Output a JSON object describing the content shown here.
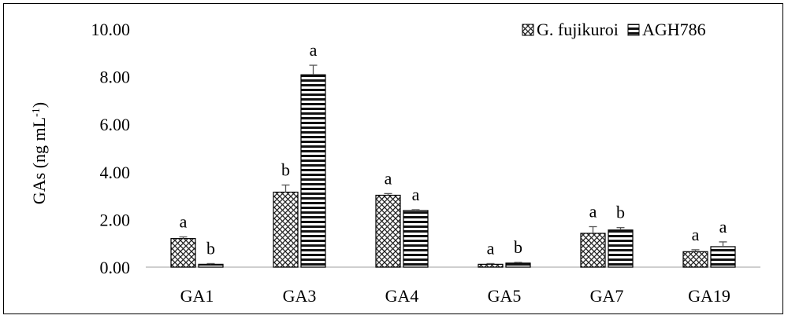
{
  "chart_data": {
    "type": "bar",
    "ylabel": "GAs (ng mL-1)",
    "ylabel_main": "GAs (ng mL",
    "ylabel_sup": "-1",
    "ylabel_close": ")",
    "ylim": [
      0,
      10
    ],
    "yticks": [
      "0.00",
      "2.00",
      "4.00",
      "6.00",
      "8.00",
      "10.00"
    ],
    "categories": [
      "GA1",
      "GA3",
      "GA4",
      "GA5",
      "GA7",
      "GA19"
    ],
    "series": [
      {
        "name": "G. fujikuroi",
        "pattern": "crosshatch",
        "values": [
          1.2,
          3.15,
          3.02,
          0.12,
          1.42,
          0.65
        ],
        "errors": [
          0.07,
          0.3,
          0.07,
          0.03,
          0.28,
          0.08
        ],
        "labels": [
          "a",
          "b",
          "a",
          "a",
          "a",
          "a"
        ]
      },
      {
        "name": "AGH786",
        "pattern": "horizontal-stripes",
        "values": [
          0.12,
          8.08,
          2.38,
          0.17,
          1.56,
          0.86
        ],
        "errors": [
          0.03,
          0.4,
          0.03,
          0.03,
          0.1,
          0.2
        ],
        "labels": [
          "b",
          "a",
          "a",
          "b",
          "b",
          "a"
        ]
      }
    ],
    "grid": false,
    "legend_position": "top-right"
  }
}
